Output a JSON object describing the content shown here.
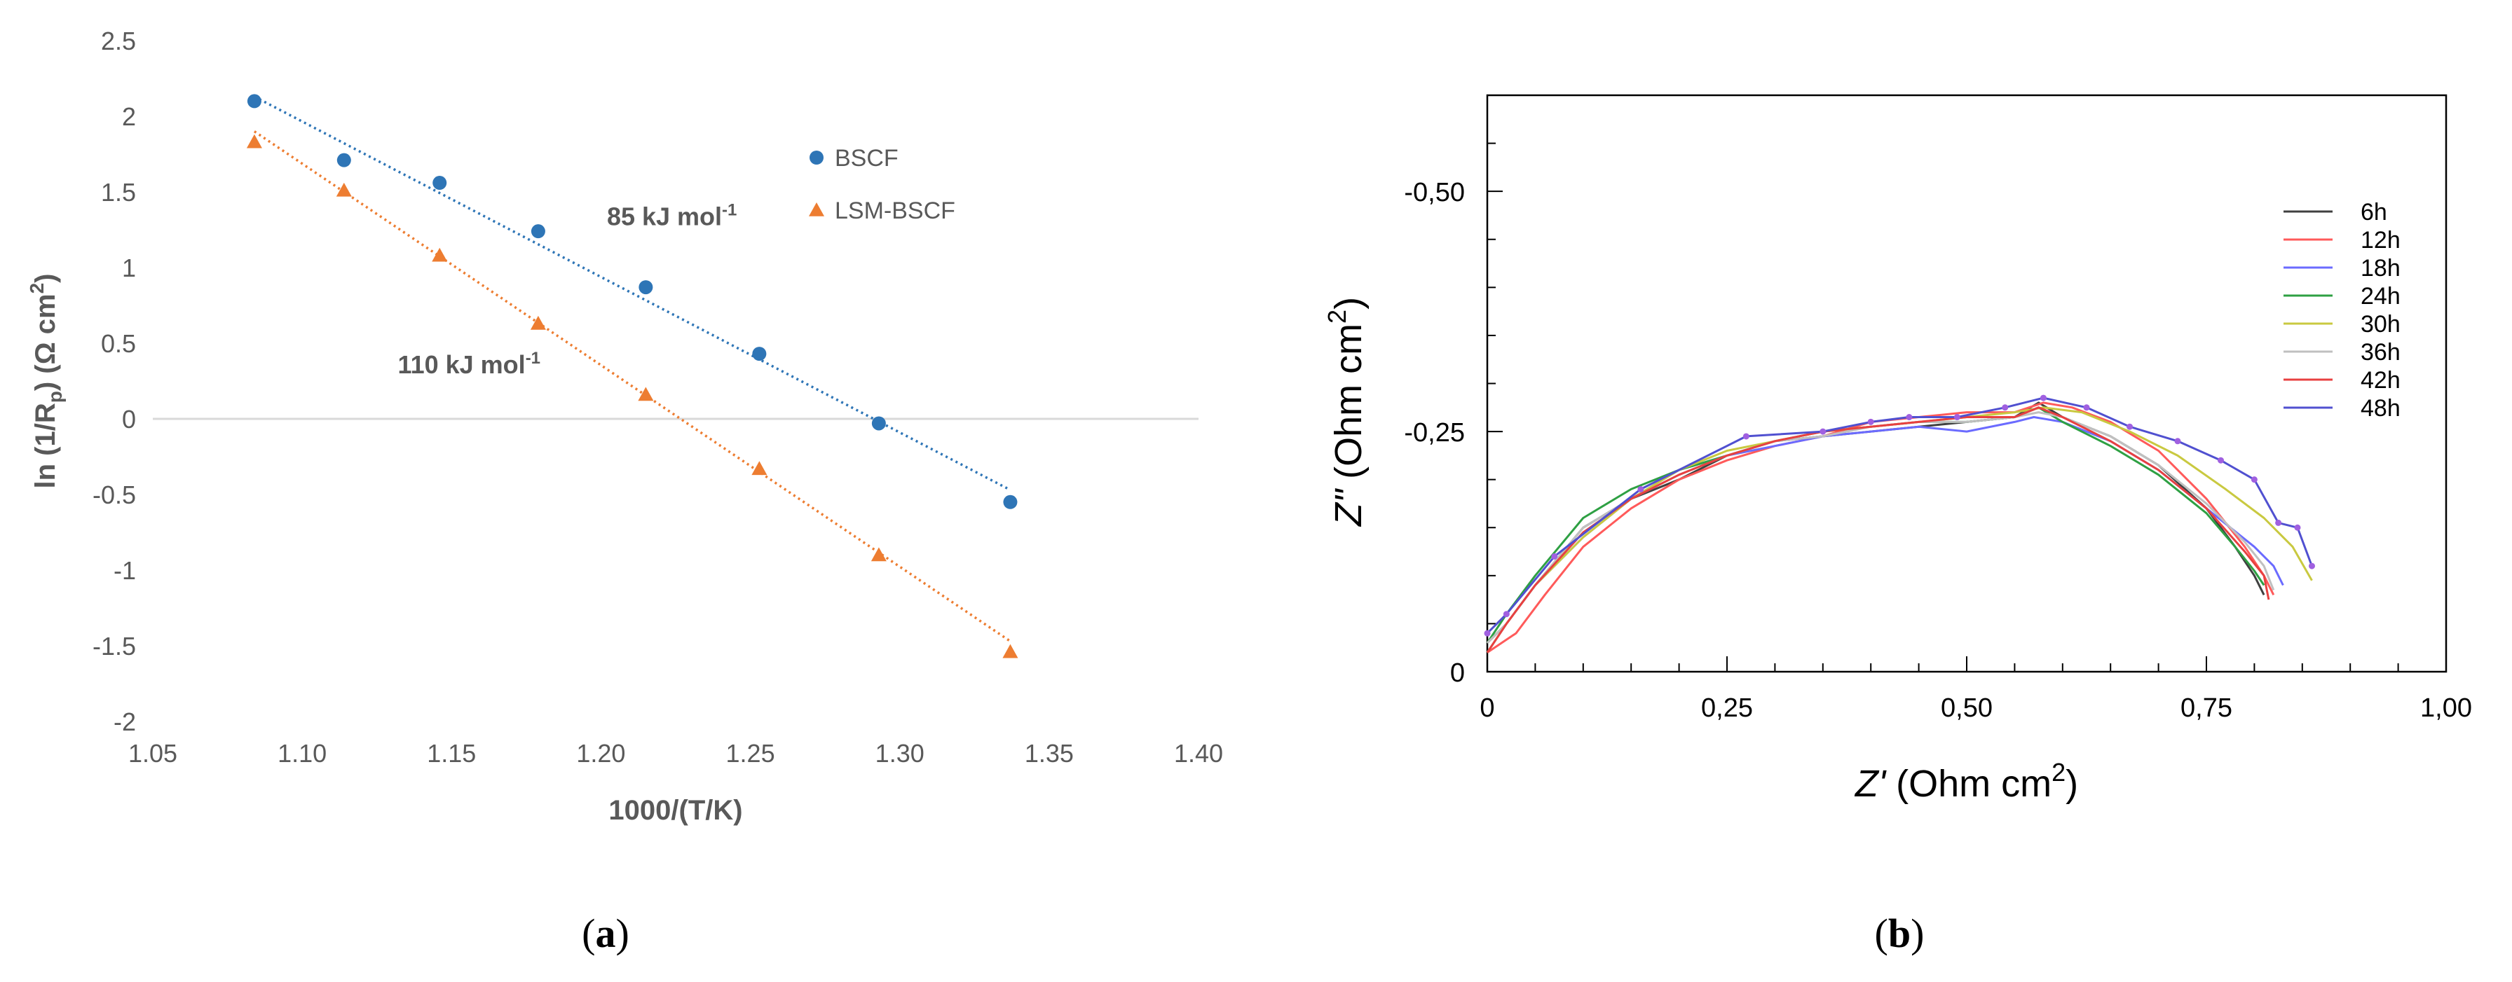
{
  "chart_data": [
    {
      "type": "scatter",
      "panel_label_prefix": "(",
      "panel_label_letter": "a",
      "panel_label_suffix": ")",
      "xlabel": "1000/(T/K)",
      "ylabel": "ln (1/Rp) (Ω cm2)",
      "ylabel_parts": {
        "pre": "ln (1/R",
        "sub": "p",
        "mid": ") (Ω cm",
        "sup": "2",
        "post": ")"
      },
      "xlim": [
        1.05,
        1.4
      ],
      "ylim": [
        -2,
        2.5
      ],
      "xticks": [
        "1.05",
        "1.10",
        "1.15",
        "1.20",
        "1.25",
        "1.30",
        "1.35",
        "1.40"
      ],
      "yticks": [
        "-2",
        "-1.5",
        "-1",
        "-0.5",
        "0",
        "0.5",
        "1",
        "1.5",
        "2",
        "2.5"
      ],
      "legend_position": "top-right",
      "annotations": [
        {
          "text": "85 kJ mol",
          "sup": "-1",
          "x": 1.202,
          "y": 1.28
        },
        {
          "text": "110 kJ mol",
          "sup": "-1",
          "x": 1.132,
          "y": 0.3
        }
      ],
      "series": [
        {
          "name": "BSCF",
          "marker": "circle",
          "color": "#2e75b6",
          "x": [
            1.084,
            1.114,
            1.146,
            1.179,
            1.215,
            1.253,
            1.293,
            1.337
          ],
          "y": [
            2.1,
            1.71,
            1.56,
            1.24,
            0.87,
            0.43,
            -0.03,
            -0.55
          ],
          "fit": {
            "x": [
              1.084,
              1.337
            ],
            "y": [
              2.13,
              -0.47
            ]
          }
        },
        {
          "name": "LSM-BSCF",
          "marker": "triangle",
          "color": "#ed7d31",
          "x": [
            1.084,
            1.114,
            1.146,
            1.179,
            1.215,
            1.253,
            1.293,
            1.337
          ],
          "y": [
            1.83,
            1.51,
            1.08,
            0.63,
            0.16,
            -0.33,
            -0.9,
            -1.54
          ],
          "fit": {
            "x": [
              1.084,
              1.337
            ],
            "y": [
              1.9,
              -1.47
            ]
          }
        }
      ]
    },
    {
      "type": "line",
      "panel_label_prefix": "(",
      "panel_label_letter": "b",
      "panel_label_suffix": ")",
      "xlabel_parts": {
        "pre": "Z'",
        "mid": " (Ohm cm",
        "sup": "2",
        "post": ")"
      },
      "ylabel_parts": {
        "pre": "Z\"",
        "mid": " (Ohm cm",
        "sup": "2",
        "post": ")"
      },
      "xlim": [
        0,
        1.0
      ],
      "ylim": [
        0,
        -0.6
      ],
      "xticks": [
        "0",
        "0,25",
        "0,50",
        "0,75",
        "1,00"
      ],
      "yticks": [
        "0",
        "-0,25",
        "-0,50"
      ],
      "legend_position": "top-right",
      "series": [
        {
          "name": "6h",
          "color": "#404040",
          "x": [
            0.0,
            0.02,
            0.05,
            0.1,
            0.15,
            0.2,
            0.25,
            0.3,
            0.35,
            0.4,
            0.45,
            0.5,
            0.55,
            0.575,
            0.6,
            0.65,
            0.7,
            0.75,
            0.78,
            0.8,
            0.81
          ],
          "y": [
            -0.03,
            -0.05,
            -0.09,
            -0.15,
            -0.18,
            -0.2,
            -0.225,
            -0.24,
            -0.245,
            -0.25,
            -0.255,
            -0.26,
            -0.265,
            -0.28,
            -0.265,
            -0.245,
            -0.215,
            -0.17,
            -0.13,
            -0.1,
            -0.08
          ]
        },
        {
          "name": "12h",
          "color": "#ff5a5a",
          "x": [
            0.0,
            0.03,
            0.06,
            0.1,
            0.15,
            0.2,
            0.25,
            0.3,
            0.35,
            0.4,
            0.45,
            0.5,
            0.55,
            0.58,
            0.61,
            0.65,
            0.7,
            0.75,
            0.79,
            0.81,
            0.82
          ],
          "y": [
            -0.02,
            -0.04,
            -0.08,
            -0.13,
            -0.17,
            -0.2,
            -0.22,
            -0.235,
            -0.245,
            -0.26,
            -0.265,
            -0.27,
            -0.27,
            -0.28,
            -0.275,
            -0.26,
            -0.23,
            -0.18,
            -0.13,
            -0.1,
            -0.08
          ]
        },
        {
          "name": "18h",
          "color": "#6b6bff",
          "x": [
            0.0,
            0.02,
            0.05,
            0.1,
            0.15,
            0.2,
            0.25,
            0.3,
            0.35,
            0.4,
            0.45,
            0.5,
            0.55,
            0.57,
            0.6,
            0.65,
            0.7,
            0.75,
            0.8,
            0.82,
            0.83
          ],
          "y": [
            -0.02,
            -0.05,
            -0.09,
            -0.14,
            -0.18,
            -0.21,
            -0.225,
            -0.235,
            -0.245,
            -0.25,
            -0.255,
            -0.25,
            -0.26,
            -0.265,
            -0.26,
            -0.24,
            -0.21,
            -0.17,
            -0.13,
            -0.11,
            -0.09
          ]
        },
        {
          "name": "24h",
          "color": "#2ea043",
          "x": [
            0.0,
            0.02,
            0.05,
            0.1,
            0.15,
            0.2,
            0.25,
            0.3,
            0.35,
            0.4,
            0.45,
            0.5,
            0.55,
            0.575,
            0.6,
            0.65,
            0.7,
            0.75,
            0.78,
            0.8,
            0.81
          ],
          "y": [
            -0.03,
            -0.06,
            -0.1,
            -0.16,
            -0.19,
            -0.21,
            -0.225,
            -0.24,
            -0.25,
            -0.255,
            -0.26,
            -0.26,
            -0.265,
            -0.275,
            -0.26,
            -0.235,
            -0.205,
            -0.165,
            -0.13,
            -0.105,
            -0.09
          ]
        },
        {
          "name": "30h",
          "color": "#c9c940",
          "x": [
            0.0,
            0.02,
            0.05,
            0.1,
            0.15,
            0.2,
            0.25,
            0.3,
            0.35,
            0.4,
            0.45,
            0.5,
            0.55,
            0.58,
            0.62,
            0.67,
            0.72,
            0.77,
            0.81,
            0.84,
            0.86
          ],
          "y": [
            -0.02,
            -0.05,
            -0.09,
            -0.14,
            -0.18,
            -0.21,
            -0.23,
            -0.24,
            -0.25,
            -0.255,
            -0.26,
            -0.265,
            -0.27,
            -0.275,
            -0.27,
            -0.25,
            -0.225,
            -0.19,
            -0.16,
            -0.13,
            -0.095
          ]
        },
        {
          "name": "36h",
          "color": "#c0c0c0",
          "x": [
            0.0,
            0.02,
            0.05,
            0.1,
            0.15,
            0.2,
            0.25,
            0.3,
            0.35,
            0.4,
            0.45,
            0.5,
            0.55,
            0.575,
            0.6,
            0.65,
            0.7,
            0.75,
            0.79,
            0.81,
            0.82
          ],
          "y": [
            -0.03,
            -0.05,
            -0.09,
            -0.15,
            -0.18,
            -0.205,
            -0.225,
            -0.24,
            -0.245,
            -0.255,
            -0.26,
            -0.26,
            -0.265,
            -0.27,
            -0.265,
            -0.245,
            -0.215,
            -0.175,
            -0.135,
            -0.11,
            -0.085
          ]
        },
        {
          "name": "42h",
          "color": "#e84040",
          "x": [
            0.0,
            0.02,
            0.05,
            0.1,
            0.15,
            0.2,
            0.25,
            0.3,
            0.35,
            0.4,
            0.45,
            0.5,
            0.55,
            0.575,
            0.6,
            0.65,
            0.7,
            0.75,
            0.79,
            0.81,
            0.815
          ],
          "y": [
            -0.02,
            -0.05,
            -0.09,
            -0.145,
            -0.18,
            -0.205,
            -0.225,
            -0.24,
            -0.25,
            -0.255,
            -0.26,
            -0.265,
            -0.265,
            -0.275,
            -0.265,
            -0.24,
            -0.21,
            -0.17,
            -0.125,
            -0.1,
            -0.075
          ]
        },
        {
          "name": "48h",
          "color": "#5050d0",
          "markers": true,
          "x": [
            0.0,
            0.02,
            0.07,
            0.16,
            0.27,
            0.35,
            0.4,
            0.44,
            0.49,
            0.54,
            0.58,
            0.625,
            0.67,
            0.72,
            0.765,
            0.8,
            0.825,
            0.845,
            0.86
          ],
          "y": [
            -0.04,
            -0.06,
            -0.12,
            -0.19,
            -0.245,
            -0.25,
            -0.26,
            -0.265,
            -0.265,
            -0.275,
            -0.285,
            -0.275,
            -0.255,
            -0.24,
            -0.22,
            -0.2,
            -0.155,
            -0.15,
            -0.11
          ]
        }
      ]
    }
  ]
}
